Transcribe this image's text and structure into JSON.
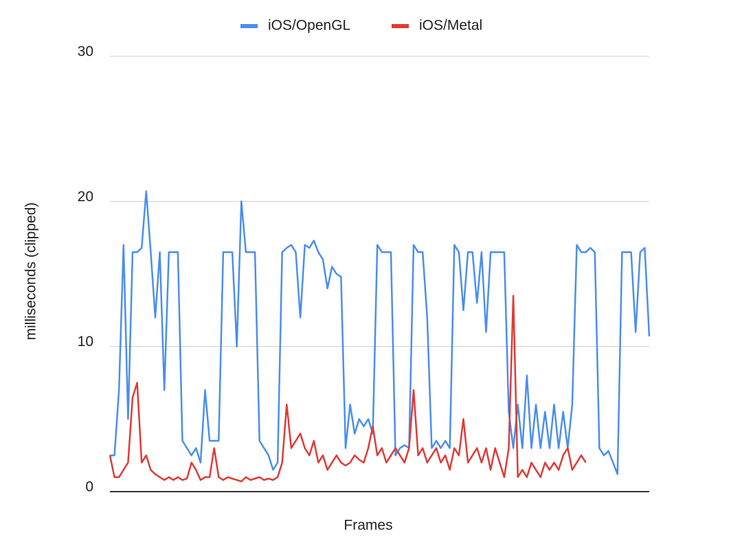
{
  "chart_data": {
    "type": "line",
    "x_label": "Frames",
    "y_label": "milliseconds (clipped)",
    "ylim": [
      0,
      30
    ],
    "yticks": [
      0,
      10,
      20,
      30
    ],
    "grid": true,
    "legend": "top",
    "series": [
      {
        "name": "iOS/OpenGL",
        "color": "#4a8ef0",
        "values": [
          2.5,
          2.5,
          7,
          17,
          5,
          16.5,
          16.5,
          16.8,
          20.7,
          16.5,
          12,
          16.5,
          7,
          16.5,
          16.5,
          16.5,
          3.5,
          3,
          2.5,
          3,
          2,
          7,
          3.5,
          3.5,
          3.5,
          16.5,
          16.5,
          16.5,
          10,
          20,
          16.5,
          16.5,
          16.5,
          3.5,
          3,
          2.5,
          1.5,
          2,
          16.5,
          16.8,
          17,
          16.5,
          12,
          17,
          16.8,
          17.3,
          16.5,
          16,
          14,
          15.5,
          15,
          14.8,
          3,
          6,
          4,
          5,
          4.5,
          5,
          4,
          17,
          16.5,
          16.5,
          16.5,
          2.5,
          3,
          3.2,
          3,
          17,
          16.5,
          16.5,
          12,
          3,
          3.5,
          3,
          3.5,
          3,
          17,
          16.5,
          12.5,
          16.5,
          16.5,
          13,
          16.5,
          11,
          16.5,
          16.5,
          16.5,
          16.5,
          5.5,
          3,
          6,
          3,
          8,
          3,
          6,
          3,
          5.5,
          3,
          6,
          3,
          5.5,
          3,
          6,
          17,
          16.5,
          16.5,
          16.8,
          16.5,
          3,
          2.5,
          2.8,
          2,
          1.2,
          16.5,
          16.5,
          16.5,
          11,
          16.5,
          16.8,
          10.7
        ]
      },
      {
        "name": "iOS/Metal",
        "color": "#e03a35",
        "values": [
          2.5,
          1,
          1,
          1.5,
          2,
          6.5,
          7.5,
          2,
          2.5,
          1.5,
          1.2,
          1,
          0.8,
          1,
          0.8,
          1,
          0.8,
          0.9,
          2,
          1.5,
          0.8,
          1,
          1,
          3,
          1,
          0.8,
          1,
          0.9,
          0.8,
          0.7,
          1,
          0.8,
          0.9,
          1,
          0.8,
          0.9,
          0.8,
          1,
          2,
          6,
          3,
          3.5,
          4,
          3,
          2.5,
          3.5,
          2,
          2.5,
          1.5,
          2,
          2.5,
          2,
          1.8,
          2,
          2.5,
          2.2,
          2,
          3,
          4.5,
          2.5,
          3,
          2,
          2.5,
          3,
          2.5,
          2,
          3,
          7,
          2.5,
          3,
          2,
          2.5,
          3,
          2,
          2.5,
          1.5,
          3,
          2.5,
          5,
          2,
          2.5,
          3,
          2,
          3,
          1.5,
          3,
          2,
          1,
          3,
          13.5,
          1,
          1.5,
          1,
          2,
          1.5,
          1,
          2,
          1.5,
          2,
          1.5,
          2.5,
          3,
          1.5,
          2,
          2.5,
          2,
          null,
          null,
          null,
          null,
          null,
          null,
          null,
          null,
          null,
          null,
          null,
          null,
          null,
          null
        ]
      }
    ]
  }
}
